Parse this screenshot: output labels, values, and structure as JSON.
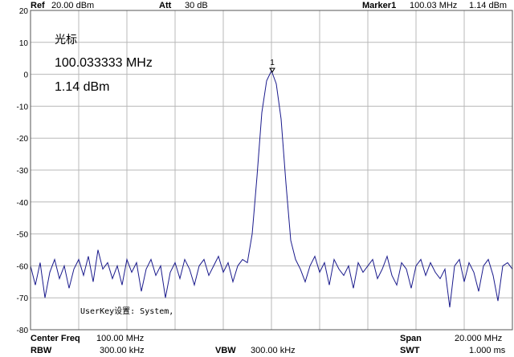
{
  "header": {
    "ref_label": "Ref",
    "ref_value": "20.00 dBm",
    "att_label": "Att",
    "att_value": "30 dB",
    "marker_label": "Marker1",
    "marker_freq": "100.03 MHz",
    "marker_level": "1.14 dBm"
  },
  "marker_box": {
    "title": "光标",
    "freq": "100.033333 MHz",
    "level": "1.14 dBm",
    "peak_label": "1"
  },
  "userkey_text": "UserKey设置:  System,",
  "footer": {
    "center_freq_label": "Center Freq",
    "center_freq_value": "100.00 MHz",
    "span_label": "Span",
    "span_value": "20.000 MHz",
    "rbw_label": "RBW",
    "rbw_value": "300.00 kHz",
    "vbw_label": "VBW",
    "vbw_value": "300.00 kHz",
    "swt_label": "SWT",
    "swt_value": "1.000 ms"
  },
  "colors": {
    "trace": "#1a1a8c",
    "grid": "#b8b8b8",
    "frame": "#555555"
  },
  "chart_data": {
    "type": "line",
    "y_ticks": [
      "20",
      "10",
      "0",
      "-10",
      "-20",
      "-30",
      "-40",
      "-50",
      "-60",
      "-70",
      "-80"
    ],
    "ylim": [
      -80,
      20
    ],
    "xlim": [
      90,
      110
    ],
    "x_unit": "MHz",
    "grid": true,
    "peak": {
      "x": 100.033,
      "y": 1.14
    },
    "series": [
      {
        "x": [
          90.0,
          90.2,
          90.4,
          90.6,
          90.8,
          91.0,
          91.2,
          91.4,
          91.6,
          91.8,
          92.0,
          92.2,
          92.4,
          92.6,
          92.8,
          93.0,
          93.2,
          93.4,
          93.6,
          93.8,
          94.0,
          94.2,
          94.4,
          94.6,
          94.8,
          95.0,
          95.2,
          95.4,
          95.6,
          95.8,
          96.0,
          96.2,
          96.4,
          96.6,
          96.8,
          97.0,
          97.2,
          97.4,
          97.6,
          97.8,
          98.0,
          98.2,
          98.4,
          98.6,
          98.8,
          99.0,
          99.2,
          99.4,
          99.6,
          99.8,
          100.0,
          100.2,
          100.4,
          100.6,
          100.8,
          101.0,
          101.2,
          101.4,
          101.6,
          101.8,
          102.0,
          102.2,
          102.4,
          102.6,
          102.8,
          103.0,
          103.2,
          103.4,
          103.6,
          103.8,
          104.0,
          104.2,
          104.4,
          104.6,
          104.8,
          105.0,
          105.2,
          105.4,
          105.6,
          105.8,
          106.0,
          106.2,
          106.4,
          106.6,
          106.8,
          107.0,
          107.2,
          107.4,
          107.6,
          107.8,
          108.0,
          108.2,
          108.4,
          108.6,
          108.8,
          109.0,
          109.2,
          109.4,
          109.6,
          109.8,
          110.0
        ],
        "y": [
          -60,
          -66,
          -59,
          -70,
          -62,
          -58,
          -64,
          -60,
          -67,
          -61,
          -58,
          -63,
          -57,
          -65,
          -55,
          -61,
          -59,
          -64,
          -60,
          -66,
          -58,
          -62,
          -59,
          -68,
          -61,
          -58,
          -63,
          -60,
          -70,
          -62,
          -59,
          -64,
          -58,
          -61,
          -66,
          -60,
          -58,
          -63,
          -60,
          -57,
          -62,
          -59,
          -65,
          -60,
          -58,
          -59,
          -50,
          -32,
          -12,
          -2,
          1.14,
          -3,
          -14,
          -34,
          -52,
          -58,
          -61,
          -65,
          -60,
          -57,
          -62,
          -59,
          -66,
          -58,
          -61,
          -63,
          -60,
          -67,
          -59,
          -62,
          -60,
          -58,
          -64,
          -61,
          -57,
          -63,
          -66,
          -59,
          -61,
          -67,
          -60,
          -58,
          -63,
          -59,
          -62,
          -64,
          -61,
          -73,
          -60,
          -58,
          -65,
          -59,
          -62,
          -68,
          -60,
          -58,
          -63,
          -71,
          -60,
          -59,
          -61
        ]
      }
    ]
  }
}
